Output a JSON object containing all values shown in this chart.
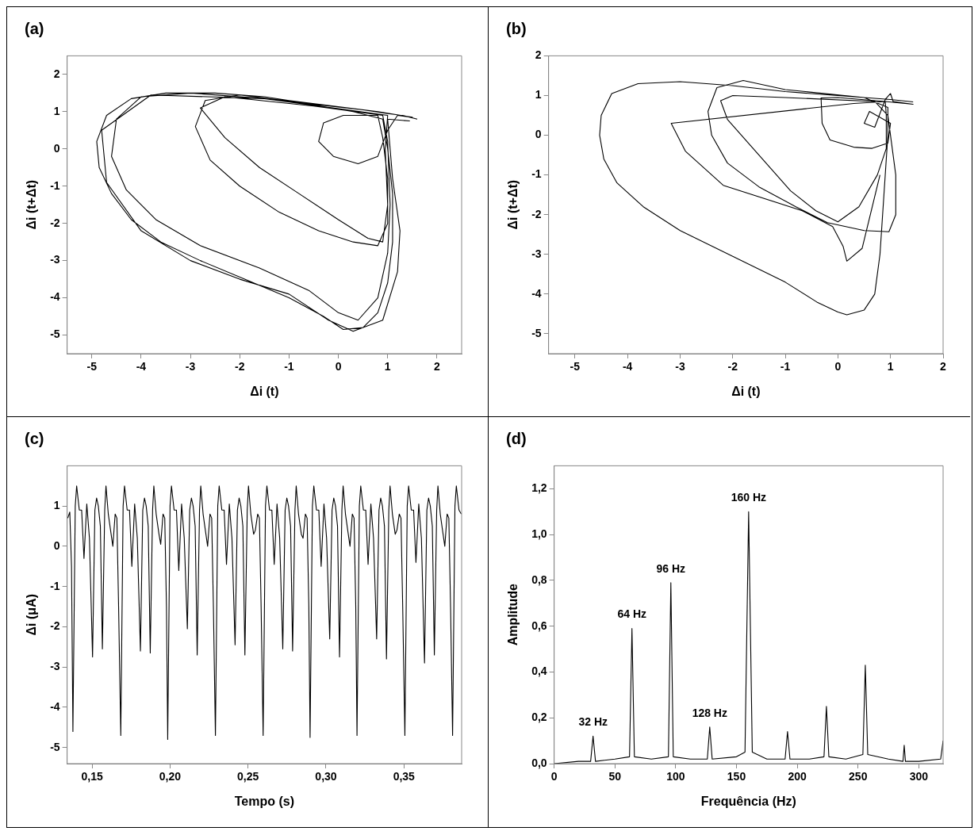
{
  "chart_data": [
    {
      "type": "line",
      "title": "(a)",
      "xlabel": "Δi (t)",
      "ylabel": "Δi (t+Δt)",
      "xlim": [
        -5.5,
        2.5
      ],
      "ylim": [
        -5.5,
        2.5
      ],
      "xticks": [
        -5,
        -4,
        -3,
        -2,
        -1,
        0,
        1,
        2
      ],
      "yticks": [
        -5,
        -4,
        -3,
        -2,
        -1,
        0,
        1,
        2
      ],
      "grid": false,
      "series": [
        {
          "color": "#000000",
          "x": [
            1.6,
            1.3,
            1.0,
            0.5,
            -0.5,
            -1.5,
            -2.5,
            -3.5,
            -4.2,
            -4.7,
            -4.9,
            -4.85,
            -4.6,
            -4.2,
            -3.6,
            -2.8,
            -1.9,
            -1.0,
            -0.3,
            0.1,
            0.5,
            0.8,
            1.0,
            1.1,
            1.1,
            1.0,
            0.9,
            0.3,
            -0.8,
            -2.0,
            -2.7,
            -2.9,
            -2.6,
            -2.0,
            -1.2,
            -0.4,
            0.3,
            0.8,
            1.0,
            1.0,
            0.9,
            0.8,
            0.1,
            -0.3,
            -0.4,
            -0.1,
            0.4,
            0.8,
            1.0,
            1.2,
            1.5,
            0.8,
            -1.0,
            -3.0,
            -4.0,
            -4.5,
            -4.6,
            -4.3,
            -3.7,
            -2.8,
            -1.6,
            -0.6,
            0.0,
            0.4,
            0.8,
            1.0,
            1.05,
            1.0,
            0.9,
            -0.5,
            -2.3,
            -2.8,
            -2.3,
            -1.6,
            -0.8,
            0.0,
            0.6,
            0.9,
            1.0,
            0.95,
            1.0,
            -1.5,
            -3.8,
            -4.8,
            -4.7,
            -4.0,
            -3.0,
            -2.0,
            -1.0,
            -0.2,
            0.3,
            0.9,
            1.2,
            1.25,
            1.1,
            1.0,
            1.45
          ],
          "values": [
            0.8,
            0.9,
            0.95,
            1.05,
            1.2,
            1.4,
            1.5,
            1.5,
            1.35,
            0.9,
            0.2,
            -0.5,
            -1.2,
            -1.9,
            -2.5,
            -3.0,
            -3.5,
            -4.0,
            -4.5,
            -4.85,
            -4.8,
            -4.4,
            -3.6,
            -2.5,
            -1.2,
            0.0,
            0.8,
            1.0,
            1.25,
            1.45,
            1.3,
            0.6,
            -0.3,
            -1.0,
            -1.7,
            -2.2,
            -2.5,
            -2.6,
            -2.0,
            -0.8,
            0.3,
            0.9,
            0.9,
            0.7,
            0.2,
            -0.2,
            -0.4,
            -0.2,
            0.5,
            0.9,
            0.85,
            1.0,
            1.3,
            1.5,
            1.4,
            0.8,
            -0.2,
            -1.1,
            -1.9,
            -2.6,
            -3.2,
            -3.8,
            -4.4,
            -4.6,
            -4.0,
            -2.8,
            -1.5,
            0.2,
            0.9,
            1.15,
            1.4,
            1.1,
            0.3,
            -0.5,
            -1.2,
            -1.9,
            -2.4,
            -2.5,
            -1.5,
            0.0,
            0.9,
            1.35,
            1.45,
            0.5,
            -0.9,
            -2.2,
            -3.0,
            -3.5,
            -3.9,
            -4.6,
            -4.9,
            -4.6,
            -3.3,
            -2.2,
            -0.8,
            0.8,
            0.75
          ]
        }
      ]
    },
    {
      "type": "line",
      "title": "(b)",
      "xlabel": "Δi (t)",
      "ylabel": "Δi (t+Δt)",
      "xlim": [
        -5.5,
        2
      ],
      "ylim": [
        -5.5,
        2
      ],
      "xticks": [
        -5,
        -4,
        -3,
        -2,
        -1,
        0,
        1,
        2
      ],
      "yticks": [
        -5,
        -4,
        -3,
        -2,
        -1,
        0,
        1,
        2
      ],
      "grid": false,
      "series": [
        {
          "color": "#000000",
          "x": [
            1.43,
            1.0,
            0.0,
            -1.0,
            -2.0,
            -3.0,
            -3.8,
            -4.3,
            -4.5,
            -4.53,
            -4.45,
            -4.2,
            -3.7,
            -3.0,
            -2.0,
            -1.0,
            -0.4,
            0.0,
            0.17,
            0.5,
            0.7,
            0.8,
            0.85,
            0.9,
            0.95,
            0.95,
            0.5,
            -1.0,
            -1.8,
            -2.3,
            -2.47,
            -2.4,
            -2.1,
            -1.5,
            -0.8,
            -0.2,
            0.5,
            0.97,
            1.1,
            1.1,
            1.0,
            0.95,
            0.7,
            -1.0,
            -2.0,
            -2.23,
            -2.1,
            -1.5,
            -0.9,
            -0.42,
            0.0,
            0.4,
            0.75,
            0.92,
            0.92,
            0.9,
            0.0,
            -0.32,
            -0.3,
            -0.15,
            0.3,
            0.65,
            0.95,
            1.0,
            0.6,
            0.5,
            0.7,
            0.9,
            1.0,
            1.05,
            1.43,
            0.9,
            0.3,
            -3.17,
            -2.9,
            -2.18,
            -0.68,
            -0.1,
            0.1,
            0.17,
            0.46,
            0.8
          ],
          "values": [
            0.84,
            0.9,
            1.0,
            1.1,
            1.25,
            1.35,
            1.3,
            1.05,
            0.5,
            0.0,
            -0.6,
            -1.2,
            -1.8,
            -2.4,
            -3.05,
            -3.7,
            -4.2,
            -4.45,
            -4.52,
            -4.4,
            -4.0,
            -3.0,
            -2.0,
            -1.0,
            0.0,
            0.7,
            0.95,
            1.15,
            1.38,
            1.2,
            0.6,
            0.0,
            -0.7,
            -1.3,
            -1.8,
            -2.2,
            -2.4,
            -2.43,
            -2.0,
            -1.0,
            0.0,
            0.5,
            0.85,
            0.95,
            1.0,
            0.87,
            0.4,
            -0.5,
            -1.4,
            -1.9,
            -2.18,
            -1.8,
            -1.0,
            -0.33,
            0.5,
            0.85,
            0.95,
            0.94,
            0.3,
            -0.12,
            -0.3,
            -0.33,
            -0.2,
            0.3,
            0.6,
            0.3,
            0.2,
            0.9,
            1.05,
            0.85,
            0.78,
            0.85,
            0.8,
            0.3,
            -0.4,
            -1.26,
            -1.9,
            -2.3,
            -2.8,
            -3.17,
            -2.85,
            -1.0
          ]
        }
      ]
    },
    {
      "type": "line",
      "title": "(c)",
      "xlabel": "Tempo (s)",
      "ylabel": "Δi (μA)",
      "xlim": [
        0.134,
        0.387
      ],
      "ylim": [
        -5.4,
        2
      ],
      "xticks": [
        {
          "value": 0.15,
          "label": "0,15"
        },
        {
          "value": 0.2,
          "label": "0,20"
        },
        {
          "value": 0.25,
          "label": "0,25"
        },
        {
          "value": 0.3,
          "label": "0,30"
        },
        {
          "value": 0.35,
          "label": "0,35"
        }
      ],
      "yticks": [
        -5,
        -4,
        -3,
        -2,
        -1,
        0,
        1
      ],
      "grid": false,
      "series": [
        {
          "color": "#000000",
          "x": [
            0.1344,
            0.1357,
            0.1368,
            0.1377,
            0.1392,
            0.1401,
            0.1418,
            0.1433,
            0.1448,
            0.1466,
            0.1483,
            0.1503,
            0.1518,
            0.1529,
            0.154,
            0.1553,
            0.1566,
            0.1581,
            0.1589,
            0.1604,
            0.1622,
            0.1633,
            0.1648,
            0.1659,
            0.167,
            0.1684,
            0.1699,
            0.1708,
            0.1725,
            0.174,
            0.1755,
            0.1773,
            0.179,
            0.181,
            0.1825,
            0.1836,
            0.1847,
            0.186,
            0.1873,
            0.1888,
            0.1896,
            0.1911,
            0.1929,
            0.194,
            0.1955,
            0.1966,
            0.1977,
            0.1985,
            0.2,
            0.2009,
            0.2026,
            0.2041,
            0.2056,
            0.2074,
            0.2091,
            0.2111,
            0.2126,
            0.2137,
            0.2148,
            0.2161,
            0.2174,
            0.2189,
            0.2197,
            0.2212,
            0.223,
            0.2241,
            0.2256,
            0.2267,
            0.2278,
            0.2291,
            0.2306,
            0.2315,
            0.2332,
            0.2347,
            0.2362,
            0.238,
            0.2397,
            0.2417,
            0.2432,
            0.2443,
            0.2454,
            0.2467,
            0.248,
            0.2495,
            0.2503,
            0.2518,
            0.2536,
            0.2547,
            0.2562,
            0.2573,
            0.2584,
            0.2597,
            0.2612,
            0.2621,
            0.2638,
            0.2653,
            0.2668,
            0.2686,
            0.2703,
            0.2723,
            0.2738,
            0.2749,
            0.276,
            0.2773,
            0.2786,
            0.2801,
            0.2809,
            0.2824,
            0.2842,
            0.2853,
            0.2868,
            0.2879,
            0.289,
            0.2898,
            0.2913,
            0.2922,
            0.2939,
            0.2954,
            0.2969,
            0.2987,
            0.3004,
            0.3024,
            0.3039,
            0.305,
            0.3061,
            0.3074,
            0.3087,
            0.3102,
            0.311,
            0.3125,
            0.3143,
            0.3154,
            0.3169,
            0.318,
            0.3191,
            0.3199,
            0.3214,
            0.3223,
            0.324,
            0.3255,
            0.327,
            0.3288,
            0.3305,
            0.3325,
            0.334,
            0.3351,
            0.3362,
            0.3375,
            0.3388,
            0.3403,
            0.3411,
            0.3426,
            0.3444,
            0.3455,
            0.347,
            0.3481,
            0.3492,
            0.3506,
            0.3521,
            0.353,
            0.3547,
            0.3562,
            0.3577,
            0.3595,
            0.3612,
            0.3632,
            0.3647,
            0.3658,
            0.3669,
            0.3682,
            0.3695,
            0.371,
            0.3718,
            0.3733,
            0.3751,
            0.3762,
            0.3777,
            0.3788,
            0.3799,
            0.3812,
            0.3827,
            0.3836,
            0.3853,
            0.3868
          ],
          "values": [
            0.7,
            0.85,
            -0.5,
            -4.6,
            1.0,
            1.5,
            0.9,
            0.9,
            -0.3,
            1.05,
            0.2,
            -2.75,
            0.9,
            1.2,
            1.0,
            0.5,
            -2.55,
            0.9,
            1.5,
            0.8,
            0.3,
            0.0,
            0.8,
            0.7,
            -1.5,
            -4.7,
            1.0,
            1.5,
            0.9,
            0.9,
            -0.5,
            1.05,
            0.2,
            -2.6,
            0.9,
            1.2,
            1.0,
            0.5,
            -2.65,
            0.9,
            1.5,
            0.8,
            0.3,
            0.05,
            0.8,
            0.7,
            -1.5,
            -4.8,
            1.0,
            1.5,
            0.9,
            0.9,
            -0.6,
            1.05,
            0.2,
            -2.05,
            0.9,
            1.2,
            1.0,
            0.5,
            -2.7,
            0.9,
            1.5,
            0.8,
            0.3,
            0.0,
            0.8,
            0.7,
            -1.5,
            -4.7,
            1.0,
            1.5,
            0.9,
            0.9,
            -0.45,
            1.05,
            0.2,
            -2.45,
            0.9,
            1.2,
            1.0,
            0.5,
            -2.7,
            0.9,
            1.5,
            0.8,
            0.3,
            0.4,
            0.8,
            0.7,
            -1.5,
            -4.7,
            1.0,
            1.5,
            0.9,
            0.9,
            -0.45,
            1.05,
            0.2,
            -2.55,
            0.9,
            1.2,
            1.0,
            0.5,
            -2.6,
            0.9,
            1.5,
            0.8,
            0.3,
            0.2,
            0.8,
            0.7,
            -1.5,
            -4.75,
            1.0,
            1.5,
            0.9,
            0.9,
            -0.5,
            1.05,
            0.2,
            -2.3,
            0.9,
            1.2,
            1.0,
            0.5,
            -2.75,
            0.9,
            1.5,
            0.8,
            0.3,
            0.0,
            0.8,
            0.7,
            -1.5,
            -4.7,
            1.0,
            1.5,
            0.9,
            0.9,
            -0.45,
            1.05,
            0.2,
            -2.3,
            0.9,
            1.2,
            1.0,
            0.5,
            -2.8,
            0.9,
            1.5,
            0.8,
            0.3,
            0.4,
            0.8,
            0.7,
            -1.5,
            -4.7,
            1.0,
            1.5,
            0.9,
            0.9,
            -0.4,
            1.05,
            0.2,
            -2.9,
            0.9,
            1.2,
            1.0,
            0.5,
            -2.7,
            0.9,
            1.5,
            0.8,
            0.3,
            0.0,
            0.8,
            0.7,
            -1.5,
            -4.7,
            1.0,
            1.5,
            0.9,
            0.8
          ]
        }
      ]
    },
    {
      "type": "line",
      "title": "(d)",
      "xlabel": "Frequência (Hz)",
      "ylabel": "Amplitude",
      "xlim": [
        0,
        320
      ],
      "ylim": [
        0,
        1.3
      ],
      "xticks": [
        0,
        50,
        100,
        150,
        200,
        250,
        300
      ],
      "yticks": [
        {
          "value": 0,
          "label": "0,0"
        },
        {
          "value": 0.2,
          "label": "0,2"
        },
        {
          "value": 0.4,
          "label": "0,4"
        },
        {
          "value": 0.6,
          "label": "0,6"
        },
        {
          "value": 0.8,
          "label": "0,8"
        },
        {
          "value": 1.0,
          "label": "1,0"
        },
        {
          "value": 1.2,
          "label": "1,2"
        }
      ],
      "grid": false,
      "annotations": [
        {
          "text": "32 Hz",
          "x": 32,
          "y": 0.12
        },
        {
          "text": "64 Hz",
          "x": 64,
          "y": 0.59
        },
        {
          "text": "96 Hz",
          "x": 96,
          "y": 0.79
        },
        {
          "text": "128 Hz",
          "x": 128,
          "y": 0.16
        },
        {
          "text": "160 Hz",
          "x": 160,
          "y": 1.1
        }
      ],
      "series": [
        {
          "color": "#000000",
          "x": [
            0,
            20,
            30,
            32,
            34,
            50,
            62,
            64,
            66,
            80,
            94,
            96,
            98,
            112,
            126,
            128,
            130,
            150,
            157,
            160,
            163,
            175,
            190,
            192,
            194,
            210,
            222,
            224,
            226,
            240,
            254,
            256,
            258,
            275,
            287,
            288,
            289,
            300,
            318,
            320
          ],
          "values": [
            0.0,
            0.01,
            0.01,
            0.12,
            0.01,
            0.02,
            0.03,
            0.59,
            0.03,
            0.02,
            0.03,
            0.79,
            0.03,
            0.02,
            0.02,
            0.16,
            0.02,
            0.03,
            0.05,
            1.1,
            0.05,
            0.02,
            0.02,
            0.14,
            0.02,
            0.02,
            0.03,
            0.25,
            0.03,
            0.02,
            0.04,
            0.43,
            0.04,
            0.02,
            0.01,
            0.08,
            0.01,
            0.01,
            0.02,
            0.1
          ]
        }
      ]
    }
  ]
}
